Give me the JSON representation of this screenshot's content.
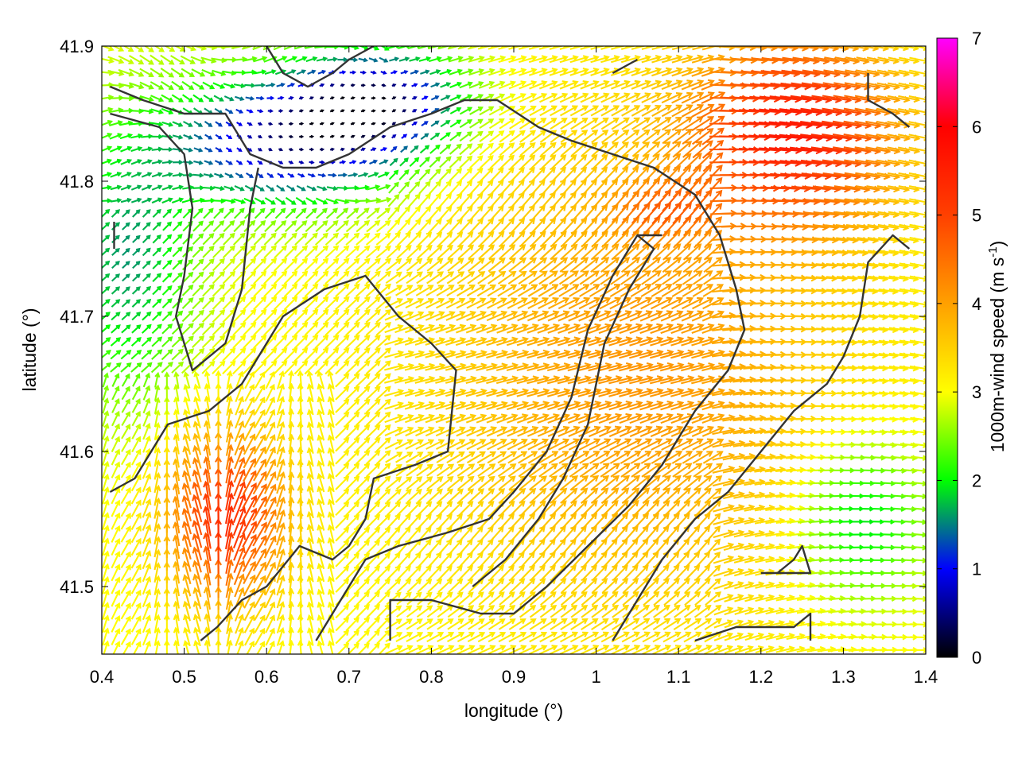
{
  "chart_data": {
    "type": "vector-field",
    "xlabel": "longitude (°)",
    "ylabel": "latitude (°)",
    "xlim": [
      0.4,
      1.4
    ],
    "ylim": [
      41.45,
      41.9
    ],
    "x_ticks": [
      "0.4",
      "0.5",
      "0.6",
      "0.7",
      "0.8",
      "0.9",
      "1",
      "1.1",
      "1.2",
      "1.3",
      "1.4"
    ],
    "x_tick_values": [
      0.4,
      0.5,
      0.6,
      0.7,
      0.8,
      0.9,
      1.0,
      1.1,
      1.2,
      1.3,
      1.4
    ],
    "y_ticks": [
      "41.5",
      "41.6",
      "41.7",
      "41.8",
      "41.9"
    ],
    "y_tick_values": [
      41.5,
      41.6,
      41.7,
      41.8,
      41.9
    ],
    "colorbar": {
      "label": "1000m-wind speed (m s",
      "label_sup": "-1",
      "label_end": ")",
      "range": [
        0,
        7
      ],
      "ticks": [
        "0",
        "1",
        "2",
        "3",
        "4",
        "5",
        "6",
        "7"
      ],
      "tick_values": [
        0,
        1,
        2,
        3,
        4,
        5,
        6,
        7
      ],
      "colormap": [
        "#000000",
        "#0000ff",
        "#00ff00",
        "#ffff00",
        "#ffa000",
        "#ff4000",
        "#ff0000",
        "#ff00ff"
      ]
    },
    "grid": false,
    "contour_color": "#333333",
    "wind_field_summary": {
      "low_speed_region_northwest_m_s": 1.0,
      "north_central_m_s": 0.8,
      "central_band_m_s": 4.0,
      "northeast_max_m_s": 5.6,
      "southwest_max_m_s": 5.5,
      "southeast_low_m_s": 2.0
    }
  }
}
